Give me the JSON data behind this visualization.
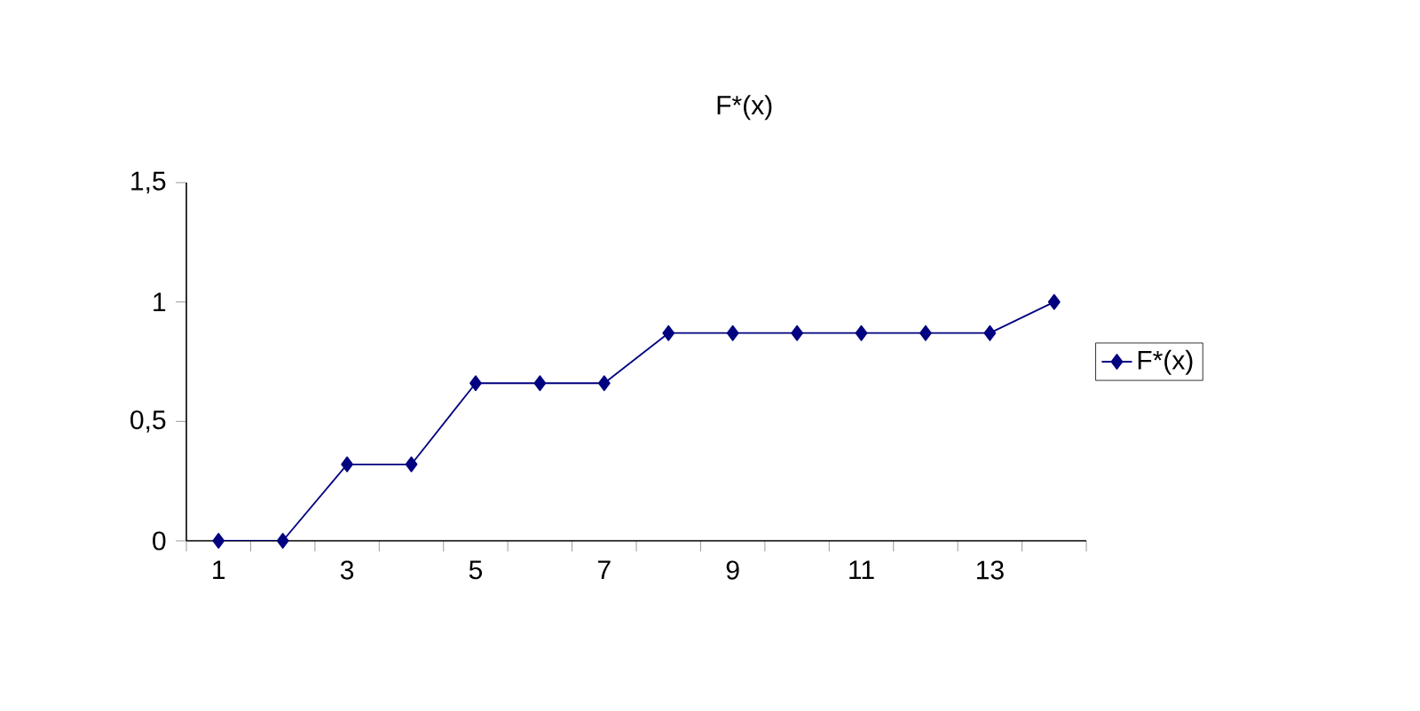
{
  "chart_data": {
    "type": "line",
    "title": "F*(x)",
    "categories": [
      "1",
      null,
      "3",
      null,
      "5",
      null,
      "7",
      null,
      "9",
      null,
      "11",
      null,
      "13",
      null
    ],
    "series": [
      {
        "name": "F*(x)",
        "color": "#000080",
        "values": [
          0,
          0,
          0.32,
          0.32,
          0.66,
          0.66,
          0.66,
          0.87,
          0.87,
          0.87,
          0.87,
          0.87,
          0.87,
          1.0
        ]
      }
    ],
    "ylim": [
      0,
      1.5
    ],
    "yticks": [
      0,
      {
        "value": 0.5,
        "label": "0,5"
      },
      1,
      {
        "value": 1.5,
        "label": "1,5"
      }
    ],
    "legend": "right",
    "marker": "diamond",
    "line_style": "solid",
    "grid": false
  }
}
